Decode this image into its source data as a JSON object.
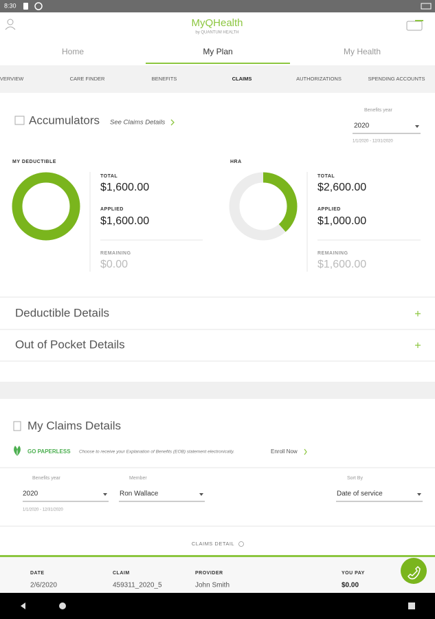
{
  "status_bar": {
    "time": "8:30"
  },
  "header": {
    "logo": "MyQHealth",
    "logo_sub": "by QUANTUM HEALTH"
  },
  "tabs": [
    "Home",
    "My Plan",
    "My Health"
  ],
  "subnav": [
    "OVERVIEW",
    "CARE FINDER",
    "BENEFITS",
    "CLAIMS",
    "AUTHORIZATIONS",
    "SPENDING ACCOUNTS"
  ],
  "accumulators": {
    "title": "Accumulators",
    "link": "See Claims Details",
    "year_label": "Benefits year",
    "year": "2020",
    "date_range": "1/1/2020 - 12/31/2020"
  },
  "deductible": {
    "label": "MY DEDUCTIBLE",
    "total_label": "TOTAL",
    "total": "$1,600.00",
    "applied_label": "APPLIED",
    "applied": "$1,600.00",
    "remaining_label": "REMAINING",
    "remaining": "$0.00"
  },
  "hra": {
    "label": "HRA",
    "total_label": "TOTAL",
    "total": "$2,600.00",
    "applied_label": "APPLIED",
    "applied": "$1,000.00",
    "remaining_label": "REMAINING",
    "remaining": "$1,600.00"
  },
  "details": [
    "Deductible Details",
    "Out of Pocket Details"
  ],
  "claims": {
    "title": "My Claims Details",
    "paperless": {
      "label": "GO PAPERLESS",
      "text": "Choose to receive your Explanation of Benefits (EOB) statement electronically.",
      "link": "Enroll Now"
    },
    "filters": {
      "year_label": "Benefits year",
      "year": "2020",
      "date_range": "1/1/2020 - 12/31/2020",
      "member_label": "Member",
      "member": "Ron Wallace",
      "sort_label": "Sort By",
      "sort": "Date of service"
    },
    "detail_label": "CLAIMS DETAIL",
    "table": {
      "headers": [
        "DATE",
        "CLAIM",
        "PROVIDER",
        "YOU PAY"
      ],
      "rows": [
        [
          "2/6/2020",
          "459311_2020_5",
          "John Smith",
          "$0.00"
        ]
      ]
    }
  }
}
